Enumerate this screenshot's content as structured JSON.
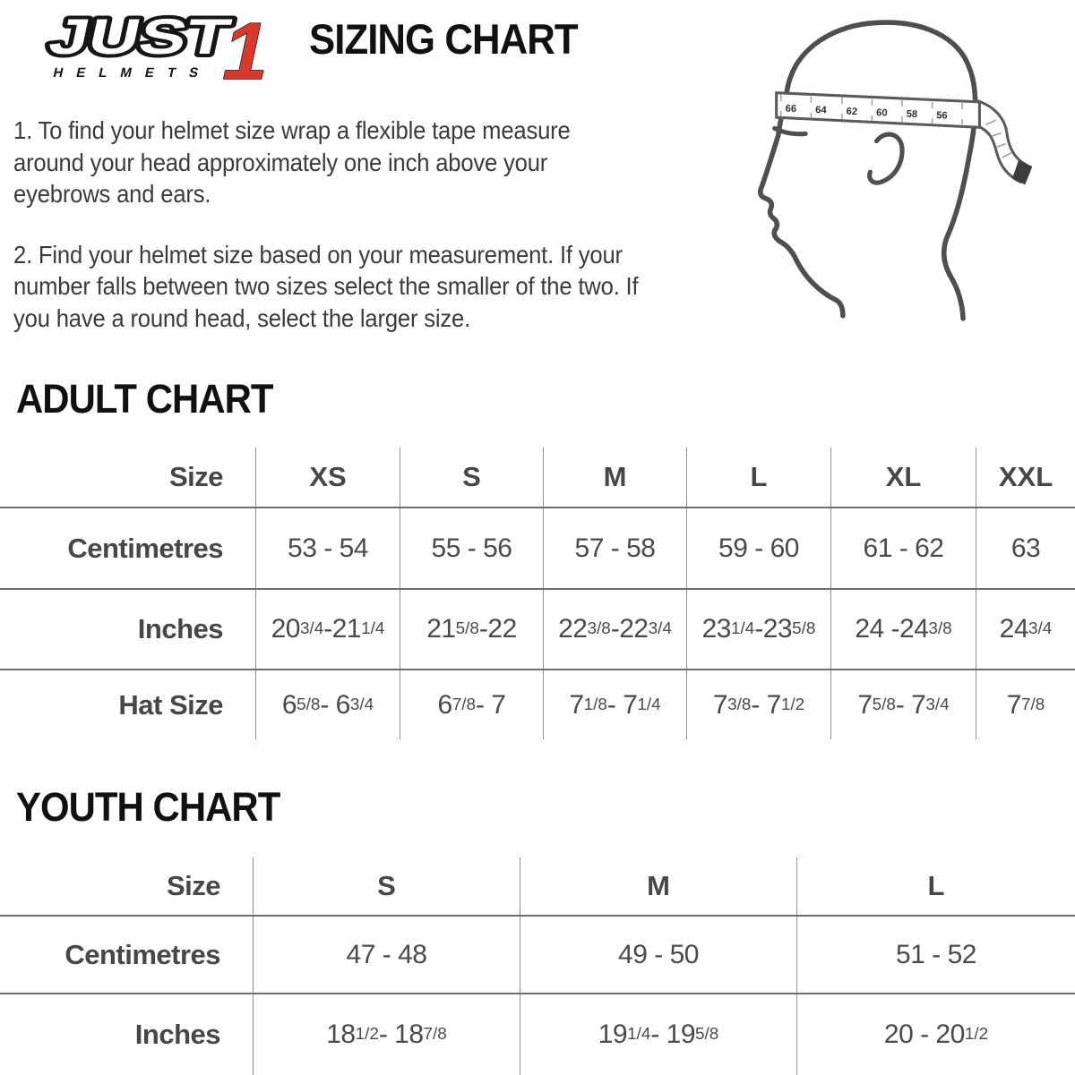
{
  "logo": {
    "brand": "JUST",
    "one": "1",
    "sub": "HELMETS"
  },
  "title": "SIZING CHART",
  "instructions": [
    "1. To find your helmet size wrap a flexible tape measure around your head approximately one inch above your eyebrows and ears.",
    "2. Find your helmet size based on your measurement. If your number falls between two sizes select the smaller of the two. If you have a round head, select the larger size."
  ],
  "head_diagram": {
    "tape_numbers": [
      "66",
      "64",
      "62",
      "60",
      "58",
      "56"
    ]
  },
  "adult_chart": {
    "title": "ADULT CHART",
    "header": [
      "Size",
      "XS",
      "S",
      "M",
      "L",
      "XL",
      "XXL"
    ],
    "rows": [
      {
        "label": "Centimetres",
        "cells": [
          "53 - 54",
          "55 - 56",
          "57 - 58",
          "59 - 60",
          "61 - 62",
          "63"
        ]
      },
      {
        "label": "Inches",
        "cells": [
          "20{3/4} -21{1/4}",
          "21{5/8} -22",
          "22{3/8} -22{3/4}",
          "23{1/4} -23{5/8}",
          "24 -24{3/8}",
          "24{3/4}"
        ]
      },
      {
        "label": "Hat Size",
        "cells": [
          "6{5/8} - 6{3/4}",
          "6{7/8} - 7",
          "7{1/8} - 7{1/4}",
          "7{3/8} - 7{1/2}",
          "7{5/8} - 7{3/4}",
          "7{7/8}"
        ]
      }
    ]
  },
  "youth_chart": {
    "title": "YOUTH CHART",
    "header": [
      "Size",
      "S",
      "M",
      "L"
    ],
    "rows": [
      {
        "label": "Centimetres",
        "cells": [
          "47 - 48",
          "49 - 50",
          "51 - 52"
        ]
      },
      {
        "label": "Inches",
        "cells": [
          "18{1/2} - 18{7/8}",
          "19{1/4} - 19{5/8}",
          "20 - 20{1/2}"
        ]
      }
    ]
  },
  "colors": {
    "accent_red": "#d8392c",
    "ink": "#111111",
    "table_text": "#4a4a4a"
  }
}
